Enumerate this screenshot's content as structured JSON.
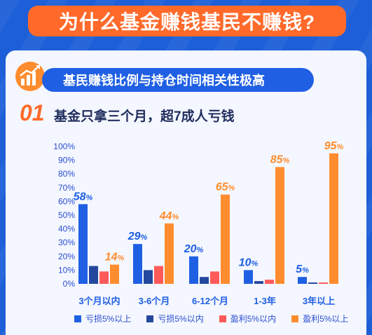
{
  "title": "为什么基金赚钱基民不赚钱?",
  "subtitle": "基民赚钱比例与持仓时间相关性极高",
  "section": {
    "number": "01",
    "title": "基金只拿三个月，超7成人亏钱"
  },
  "colors": {
    "loss_big": "#1f5fe3",
    "loss_small": "#24489e",
    "gain_small": "#ff5a5a",
    "gain_big": "#ff8c2e"
  },
  "chart_data": {
    "type": "bar",
    "categories": [
      "3个月以内",
      "3-6个月",
      "6-12个月",
      "1-3年",
      "3年以上"
    ],
    "series": [
      {
        "name": "亏损5%以上",
        "values": [
          58,
          29,
          20,
          10,
          5
        ],
        "labels": [
          "58%",
          "29%",
          "20%",
          "10%",
          "5%"
        ]
      },
      {
        "name": "亏损5%以内",
        "values": [
          13,
          10,
          5,
          2,
          1
        ]
      },
      {
        "name": "盈利5%以内",
        "values": [
          9,
          13,
          9,
          3,
          1
        ]
      },
      {
        "name": "盈利5%以上",
        "values": [
          14,
          44,
          65,
          85,
          95
        ],
        "labels": [
          "14%",
          "44%",
          "65%",
          "85%",
          "95%"
        ]
      }
    ],
    "y_ticks": [
      "0%",
      "10%",
      "20%",
      "30%",
      "40%",
      "50%",
      "60%",
      "70%",
      "80%",
      "90%",
      "100%"
    ],
    "ylim": [
      0,
      100
    ],
    "legend_position": "bottom"
  }
}
